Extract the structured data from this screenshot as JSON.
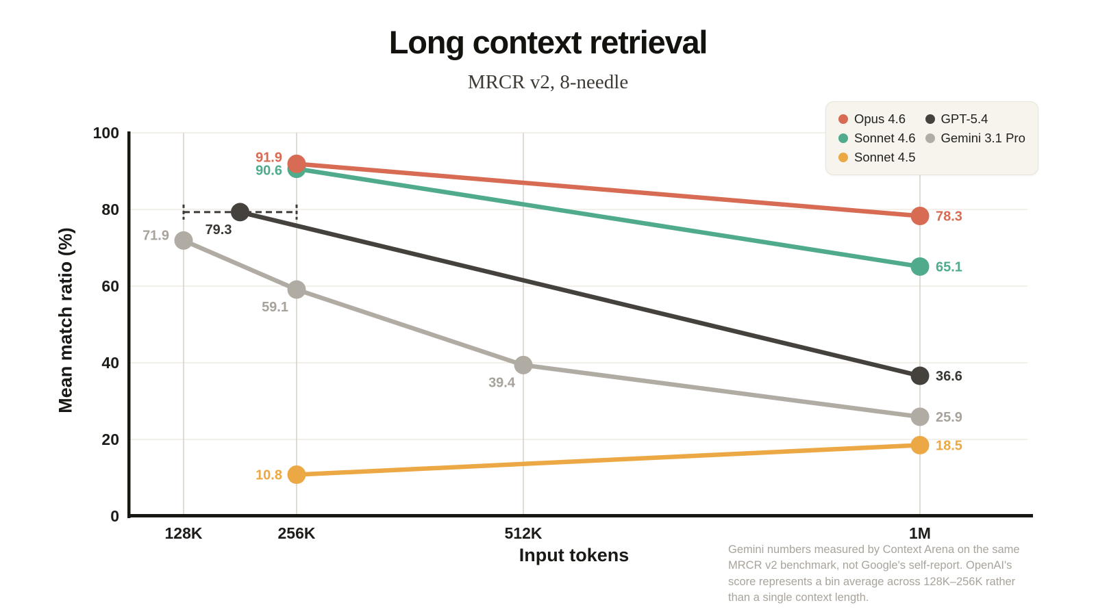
{
  "title": "Long context retrieval",
  "subtitle": "MRCR v2, 8-needle",
  "footnote": "Gemini numbers measured by Context Arena on the same MRCR v2 benchmark, not Google's self-report. OpenAI's score represents a bin average across 128K–256K rather than a single context length.",
  "chart_data": {
    "type": "line",
    "title": "Long context retrieval",
    "subtitle": "MRCR v2, 8-needle",
    "xlabel": "Input tokens",
    "ylabel": "Mean match ratio (%)",
    "x_ticks": [
      "128K",
      "256K",
      "512K",
      "1M"
    ],
    "y_ticks": [
      0,
      20,
      40,
      60,
      80,
      100
    ],
    "ylim": [
      0,
      100
    ],
    "grid": true,
    "legend_position": "top-right",
    "legend_columns": [
      [
        "Opus 4.6",
        "Sonnet 4.6",
        "Sonnet 4.5"
      ],
      [
        "GPT-5.4",
        "Gemini 3.1 Pro"
      ]
    ],
    "series": [
      {
        "name": "Gemini 3.1 Pro",
        "color": "#b0aca4",
        "label_color": "#a7a39b",
        "points": [
          {
            "x": "128K",
            "y": 71.9,
            "label_side": "left",
            "label_dy": -8
          },
          {
            "x": "256K",
            "y": 59.1,
            "label_side": "below-left"
          },
          {
            "x": "512K",
            "y": 39.4,
            "label_side": "below-left"
          },
          {
            "x": "1M",
            "y": 25.9,
            "label_side": "right"
          }
        ]
      },
      {
        "name": "GPT-5.4",
        "color": "#45413d",
        "label_color": "#3a3733",
        "points": [
          {
            "x": "128K–256K",
            "y": 79.3,
            "label_side": "below-left",
            "error_bar": {
              "from": "128K",
              "to": "256K"
            }
          },
          {
            "x": "1M",
            "y": 36.6,
            "label_side": "right"
          }
        ]
      },
      {
        "name": "Sonnet 4.5",
        "color": "#eba844",
        "points": [
          {
            "x": "256K",
            "y": 10.8,
            "label_side": "left"
          },
          {
            "x": "1M",
            "y": 18.5,
            "label_side": "right"
          }
        ]
      },
      {
        "name": "Sonnet 4.6",
        "color": "#4fab8b",
        "points": [
          {
            "x": "256K",
            "y": 90.6,
            "label_side": "left",
            "label_dy": 2
          },
          {
            "x": "1M",
            "y": 65.1,
            "label_side": "right"
          }
        ]
      },
      {
        "name": "Opus 4.6",
        "color": "#d76b53",
        "points": [
          {
            "x": "256K",
            "y": 91.9,
            "label_side": "left",
            "label_dy": -10
          },
          {
            "x": "1M",
            "y": 78.3,
            "label_side": "right"
          }
        ]
      }
    ]
  }
}
